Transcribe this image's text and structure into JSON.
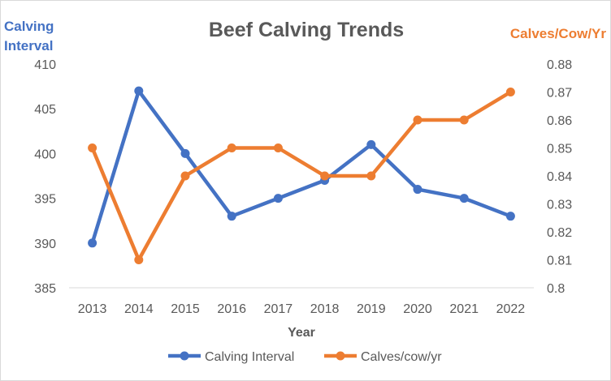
{
  "chart_data": {
    "type": "line",
    "title": "Beef Calving Trends",
    "xlabel": "Year",
    "ylabel_left": [
      "Calving",
      "Interval"
    ],
    "ylabel_right": "Calves/Cow/Yr",
    "categories": [
      "2013",
      "2014",
      "2015",
      "2016",
      "2017",
      "2018",
      "2019",
      "2020",
      "2021",
      "2022"
    ],
    "y_left": {
      "min": 385,
      "max": 410,
      "step": 5,
      "ticks": [
        "385",
        "390",
        "395",
        "400",
        "405",
        "410"
      ]
    },
    "y_right": {
      "min": 0.8,
      "max": 0.88,
      "step": 0.01,
      "ticks": [
        "0.8",
        "0.81",
        "0.82",
        "0.83",
        "0.84",
        "0.85",
        "0.86",
        "0.87",
        "0.88"
      ]
    },
    "grid": false,
    "legend_position": "bottom",
    "series": [
      {
        "name": "Calving Interval",
        "axis": "left",
        "color": "#4472C4",
        "values": [
          390,
          407,
          400,
          393,
          395,
          397,
          401,
          396,
          395,
          393
        ]
      },
      {
        "name": "Calves/cow/yr",
        "axis": "right",
        "color": "#ED7D31",
        "values": [
          0.85,
          0.81,
          0.84,
          0.85,
          0.85,
          0.84,
          0.84,
          0.86,
          0.86,
          0.87
        ]
      }
    ]
  }
}
